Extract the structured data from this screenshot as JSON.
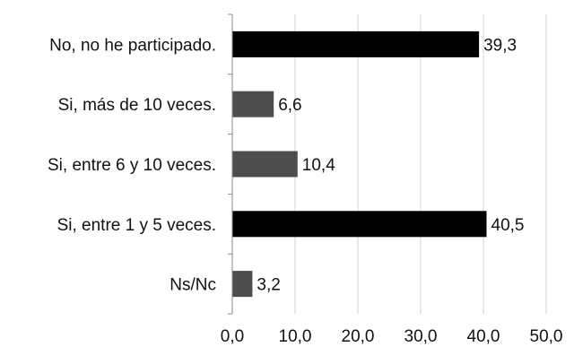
{
  "chart_data": {
    "type": "bar",
    "orientation": "horizontal",
    "categories": [
      "No, no he participado.",
      "Si, más de 10 veces.",
      "Si, entre 6 y 10 veces.",
      "Si, entre 1 y 5 veces.",
      "Ns/Nc"
    ],
    "values": [
      39.3,
      6.6,
      10.4,
      40.5,
      3.2
    ],
    "value_labels": [
      "39,3",
      "6,6",
      "10,4",
      "40,5",
      "3,2"
    ],
    "bar_colors": [
      "#000000",
      "#4d4d4d",
      "#4d4d4d",
      "#000000",
      "#4d4d4d"
    ],
    "xlim": [
      0,
      50
    ],
    "ticks": [
      0,
      10,
      20,
      30,
      40,
      50
    ],
    "tick_labels": [
      "0,0",
      "10,0",
      "20,0",
      "30,0",
      "40,0",
      "50,0"
    ],
    "grid": true,
    "legend": false,
    "title": "",
    "xlabel": "",
    "ylabel": ""
  }
}
